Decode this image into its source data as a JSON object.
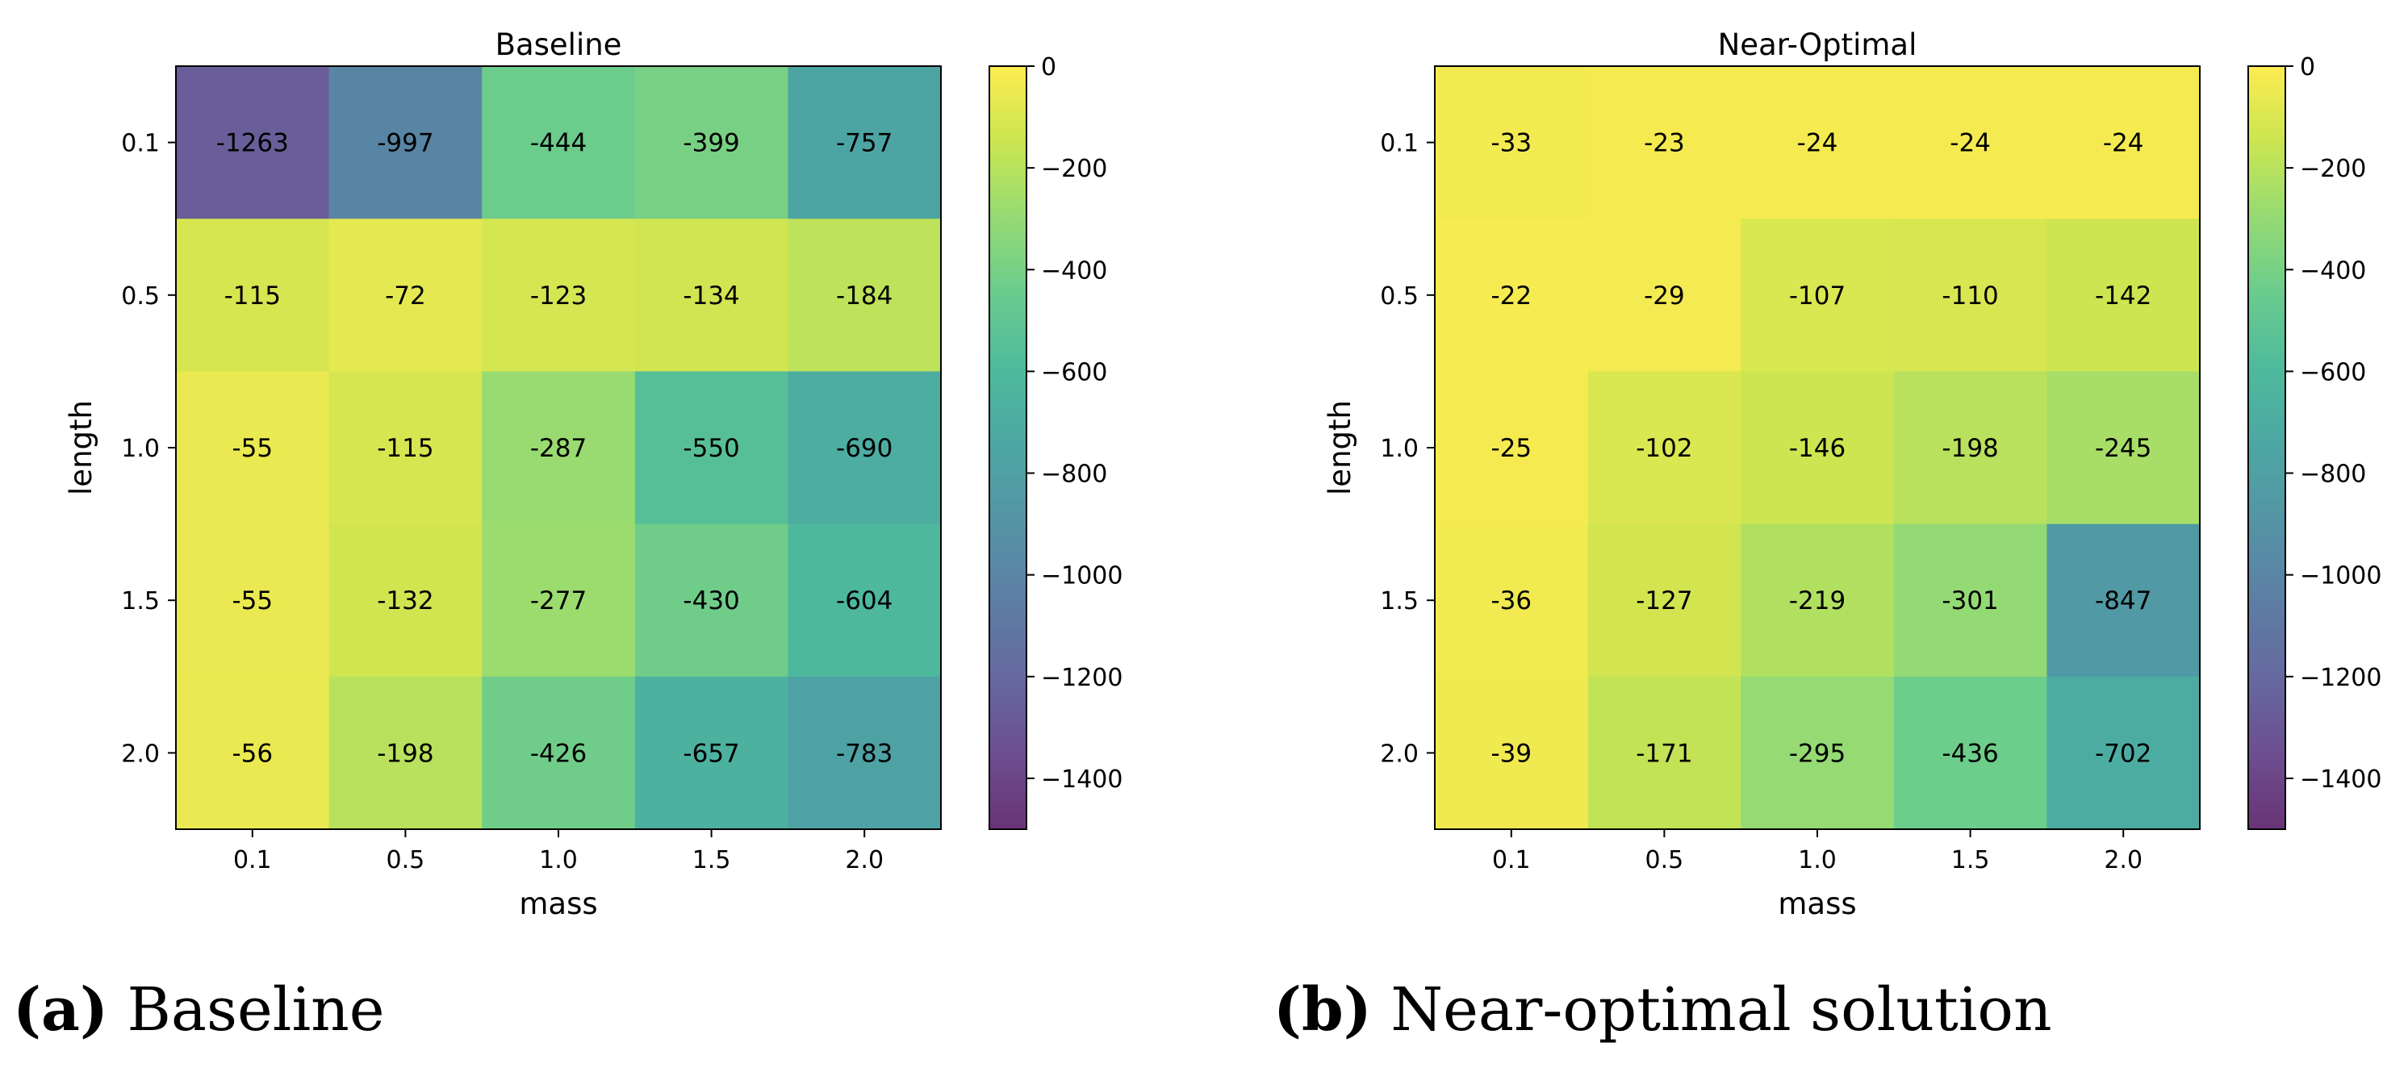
{
  "chart_data": [
    {
      "type": "heatmap",
      "title": "Baseline",
      "xlabel": "mass",
      "ylabel": "length",
      "x_categories": [
        "0.1",
        "0.5",
        "1.0",
        "1.5",
        "2.0"
      ],
      "y_categories": [
        "0.1",
        "0.5",
        "1.0",
        "1.5",
        "2.0"
      ],
      "values": [
        [
          -1263,
          -997,
          -444,
          -399,
          -757
        ],
        [
          -115,
          -72,
          -123,
          -134,
          -184
        ],
        [
          -55,
          -115,
          -287,
          -550,
          -690
        ],
        [
          -55,
          -132,
          -277,
          -430,
          -604
        ],
        [
          -56,
          -198,
          -426,
          -657,
          -783
        ]
      ],
      "colorbar": {
        "range": [
          -1500,
          0
        ],
        "ticks": [
          0,
          -200,
          -400,
          -600,
          -800,
          -1000,
          -1200,
          -1400
        ],
        "tick_labels": [
          "0",
          "−200",
          "−400",
          "−600",
          "−800",
          "−1000",
          "−1200",
          "−1400"
        ],
        "colormap": "viridis"
      }
    },
    {
      "type": "heatmap",
      "title": "Near-Optimal",
      "xlabel": "mass",
      "ylabel": "length",
      "x_categories": [
        "0.1",
        "0.5",
        "1.0",
        "1.5",
        "2.0"
      ],
      "y_categories": [
        "0.1",
        "0.5",
        "1.0",
        "1.5",
        "2.0"
      ],
      "values": [
        [
          -33,
          -23,
          -24,
          -24,
          -24
        ],
        [
          -22,
          -29,
          -107,
          -110,
          -142
        ],
        [
          -25,
          -102,
          -146,
          -198,
          -245
        ],
        [
          -36,
          -127,
          -219,
          -301,
          -847
        ],
        [
          -39,
          -171,
          -295,
          -436,
          -702
        ]
      ],
      "colorbar": {
        "range": [
          -1500,
          0
        ],
        "ticks": [
          0,
          -200,
          -400,
          -600,
          -800,
          -1000,
          -1200,
          -1400
        ],
        "tick_labels": [
          "0",
          "−200",
          "−400",
          "−600",
          "−800",
          "−1000",
          "−1200",
          "−1400"
        ],
        "colormap": "viridis"
      }
    }
  ],
  "captions": [
    {
      "tag": "(a)",
      "text": "Baseline"
    },
    {
      "tag": "(b)",
      "text": "Near-optimal solution"
    }
  ]
}
